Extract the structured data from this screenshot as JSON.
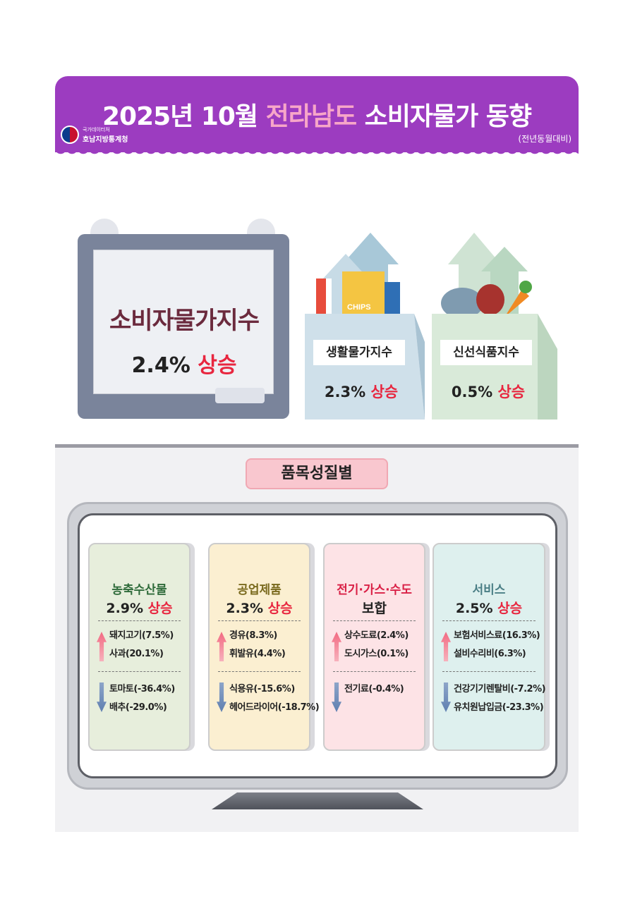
{
  "header": {
    "title_pre": "2025년 10월 ",
    "title_region": "전라남도",
    "title_post": " 소비자물가 동향",
    "org_line1": "국가데이터처",
    "org_line2": "호남지방통계청",
    "basis": "(전년동월대비)"
  },
  "colors": {
    "banner": "#9c3cc0",
    "rise": "#e8263f",
    "region": "#f7a6c8"
  },
  "cpi": {
    "label": "소비자물가지수",
    "value": "2.4%",
    "trend": "상승"
  },
  "living": {
    "label": "생활물가지수",
    "value": "2.3%",
    "trend": "상승",
    "chips": "CHIPS"
  },
  "fresh": {
    "label": "신선식품지수",
    "value": "0.5%",
    "trend": "상승"
  },
  "section_title": "품목성질별",
  "cards": [
    {
      "title": "농축수산물",
      "value": "2.9%",
      "trend": "상승",
      "up": [
        "돼지고기(7.5%)",
        "사과(20.1%)"
      ],
      "down": [
        "토마토(-36.4%)",
        "배추(-29.0%)"
      ]
    },
    {
      "title": "공업제품",
      "value": "2.3%",
      "trend": "상승",
      "up": [
        "경유(8.3%)",
        "휘발유(4.4%)"
      ],
      "down": [
        "식용유(-15.6%)",
        "헤어드라이어(-18.7%)"
      ]
    },
    {
      "title": "전기·가스·수도",
      "value": "",
      "trend_flat": "보합",
      "up": [
        "상수도료(2.4%)",
        "도시가스(0.1%)"
      ],
      "down": [
        "전기료(-0.4%)"
      ]
    },
    {
      "title": "서비스",
      "value": "2.5%",
      "trend": "상승",
      "up": [
        "보험서비스료(16.3%)",
        "설비수리비(6.3%)"
      ],
      "down": [
        "건강기기렌탈비(-7.2%)",
        "유치원납입금(-23.3%)"
      ]
    }
  ]
}
